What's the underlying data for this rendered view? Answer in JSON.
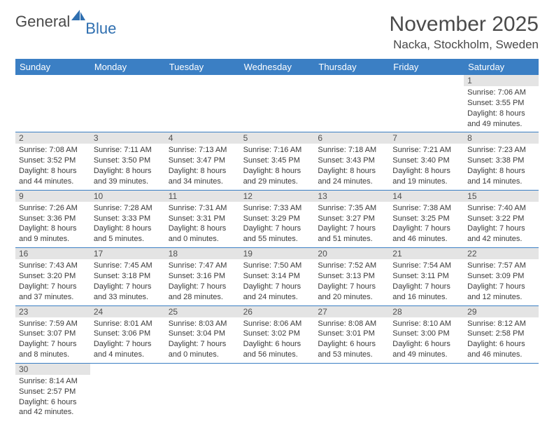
{
  "logo": {
    "part1": "General",
    "part2": "Blue"
  },
  "title": "November 2025",
  "location": "Nacka, Stockholm, Sweden",
  "colors": {
    "header_bg": "#3b7fc4",
    "header_text": "#ffffff",
    "daynum_bg": "#e4e4e4",
    "text": "#3a3a3a",
    "rule": "#3b7fc4",
    "logo_gray": "#4a4a4a",
    "logo_blue": "#2f6fb0"
  },
  "day_names": [
    "Sunday",
    "Monday",
    "Tuesday",
    "Wednesday",
    "Thursday",
    "Friday",
    "Saturday"
  ],
  "weeks": [
    [
      {
        "n": "",
        "sr": "",
        "ss": "",
        "dl": ""
      },
      {
        "n": "",
        "sr": "",
        "ss": "",
        "dl": ""
      },
      {
        "n": "",
        "sr": "",
        "ss": "",
        "dl": ""
      },
      {
        "n": "",
        "sr": "",
        "ss": "",
        "dl": ""
      },
      {
        "n": "",
        "sr": "",
        "ss": "",
        "dl": ""
      },
      {
        "n": "",
        "sr": "",
        "ss": "",
        "dl": ""
      },
      {
        "n": "1",
        "sr": "Sunrise: 7:06 AM",
        "ss": "Sunset: 3:55 PM",
        "dl": "Daylight: 8 hours and 49 minutes."
      }
    ],
    [
      {
        "n": "2",
        "sr": "Sunrise: 7:08 AM",
        "ss": "Sunset: 3:52 PM",
        "dl": "Daylight: 8 hours and 44 minutes."
      },
      {
        "n": "3",
        "sr": "Sunrise: 7:11 AM",
        "ss": "Sunset: 3:50 PM",
        "dl": "Daylight: 8 hours and 39 minutes."
      },
      {
        "n": "4",
        "sr": "Sunrise: 7:13 AM",
        "ss": "Sunset: 3:47 PM",
        "dl": "Daylight: 8 hours and 34 minutes."
      },
      {
        "n": "5",
        "sr": "Sunrise: 7:16 AM",
        "ss": "Sunset: 3:45 PM",
        "dl": "Daylight: 8 hours and 29 minutes."
      },
      {
        "n": "6",
        "sr": "Sunrise: 7:18 AM",
        "ss": "Sunset: 3:43 PM",
        "dl": "Daylight: 8 hours and 24 minutes."
      },
      {
        "n": "7",
        "sr": "Sunrise: 7:21 AM",
        "ss": "Sunset: 3:40 PM",
        "dl": "Daylight: 8 hours and 19 minutes."
      },
      {
        "n": "8",
        "sr": "Sunrise: 7:23 AM",
        "ss": "Sunset: 3:38 PM",
        "dl": "Daylight: 8 hours and 14 minutes."
      }
    ],
    [
      {
        "n": "9",
        "sr": "Sunrise: 7:26 AM",
        "ss": "Sunset: 3:36 PM",
        "dl": "Daylight: 8 hours and 9 minutes."
      },
      {
        "n": "10",
        "sr": "Sunrise: 7:28 AM",
        "ss": "Sunset: 3:33 PM",
        "dl": "Daylight: 8 hours and 5 minutes."
      },
      {
        "n": "11",
        "sr": "Sunrise: 7:31 AM",
        "ss": "Sunset: 3:31 PM",
        "dl": "Daylight: 8 hours and 0 minutes."
      },
      {
        "n": "12",
        "sr": "Sunrise: 7:33 AM",
        "ss": "Sunset: 3:29 PM",
        "dl": "Daylight: 7 hours and 55 minutes."
      },
      {
        "n": "13",
        "sr": "Sunrise: 7:35 AM",
        "ss": "Sunset: 3:27 PM",
        "dl": "Daylight: 7 hours and 51 minutes."
      },
      {
        "n": "14",
        "sr": "Sunrise: 7:38 AM",
        "ss": "Sunset: 3:25 PM",
        "dl": "Daylight: 7 hours and 46 minutes."
      },
      {
        "n": "15",
        "sr": "Sunrise: 7:40 AM",
        "ss": "Sunset: 3:22 PM",
        "dl": "Daylight: 7 hours and 42 minutes."
      }
    ],
    [
      {
        "n": "16",
        "sr": "Sunrise: 7:43 AM",
        "ss": "Sunset: 3:20 PM",
        "dl": "Daylight: 7 hours and 37 minutes."
      },
      {
        "n": "17",
        "sr": "Sunrise: 7:45 AM",
        "ss": "Sunset: 3:18 PM",
        "dl": "Daylight: 7 hours and 33 minutes."
      },
      {
        "n": "18",
        "sr": "Sunrise: 7:47 AM",
        "ss": "Sunset: 3:16 PM",
        "dl": "Daylight: 7 hours and 28 minutes."
      },
      {
        "n": "19",
        "sr": "Sunrise: 7:50 AM",
        "ss": "Sunset: 3:14 PM",
        "dl": "Daylight: 7 hours and 24 minutes."
      },
      {
        "n": "20",
        "sr": "Sunrise: 7:52 AM",
        "ss": "Sunset: 3:13 PM",
        "dl": "Daylight: 7 hours and 20 minutes."
      },
      {
        "n": "21",
        "sr": "Sunrise: 7:54 AM",
        "ss": "Sunset: 3:11 PM",
        "dl": "Daylight: 7 hours and 16 minutes."
      },
      {
        "n": "22",
        "sr": "Sunrise: 7:57 AM",
        "ss": "Sunset: 3:09 PM",
        "dl": "Daylight: 7 hours and 12 minutes."
      }
    ],
    [
      {
        "n": "23",
        "sr": "Sunrise: 7:59 AM",
        "ss": "Sunset: 3:07 PM",
        "dl": "Daylight: 7 hours and 8 minutes."
      },
      {
        "n": "24",
        "sr": "Sunrise: 8:01 AM",
        "ss": "Sunset: 3:06 PM",
        "dl": "Daylight: 7 hours and 4 minutes."
      },
      {
        "n": "25",
        "sr": "Sunrise: 8:03 AM",
        "ss": "Sunset: 3:04 PM",
        "dl": "Daylight: 7 hours and 0 minutes."
      },
      {
        "n": "26",
        "sr": "Sunrise: 8:06 AM",
        "ss": "Sunset: 3:02 PM",
        "dl": "Daylight: 6 hours and 56 minutes."
      },
      {
        "n": "27",
        "sr": "Sunrise: 8:08 AM",
        "ss": "Sunset: 3:01 PM",
        "dl": "Daylight: 6 hours and 53 minutes."
      },
      {
        "n": "28",
        "sr": "Sunrise: 8:10 AM",
        "ss": "Sunset: 3:00 PM",
        "dl": "Daylight: 6 hours and 49 minutes."
      },
      {
        "n": "29",
        "sr": "Sunrise: 8:12 AM",
        "ss": "Sunset: 2:58 PM",
        "dl": "Daylight: 6 hours and 46 minutes."
      }
    ],
    [
      {
        "n": "30",
        "sr": "Sunrise: 8:14 AM",
        "ss": "Sunset: 2:57 PM",
        "dl": "Daylight: 6 hours and 42 minutes."
      },
      {
        "n": "",
        "sr": "",
        "ss": "",
        "dl": ""
      },
      {
        "n": "",
        "sr": "",
        "ss": "",
        "dl": ""
      },
      {
        "n": "",
        "sr": "",
        "ss": "",
        "dl": ""
      },
      {
        "n": "",
        "sr": "",
        "ss": "",
        "dl": ""
      },
      {
        "n": "",
        "sr": "",
        "ss": "",
        "dl": ""
      },
      {
        "n": "",
        "sr": "",
        "ss": "",
        "dl": ""
      }
    ]
  ]
}
